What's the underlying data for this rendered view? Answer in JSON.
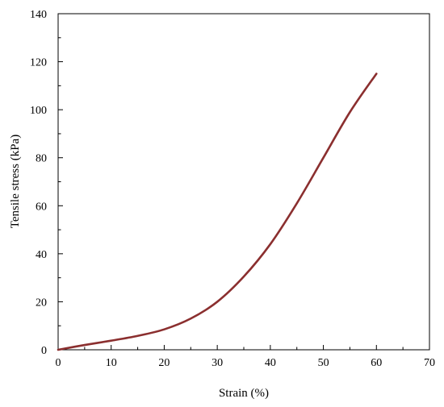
{
  "chart_data": {
    "type": "line",
    "xlabel": "Strain (%)",
    "ylabel": "Tensile stress (kPa)",
    "xlim": [
      0,
      70
    ],
    "ylim": [
      0,
      140
    ],
    "x_ticks": [
      0,
      10,
      20,
      30,
      40,
      50,
      60,
      70
    ],
    "y_ticks": [
      0,
      20,
      40,
      60,
      80,
      100,
      120,
      140
    ],
    "x_tick_labels": [
      "0",
      "10",
      "20",
      "30",
      "40",
      "50",
      "60",
      "70"
    ],
    "y_tick_labels": [
      "0",
      "20",
      "40",
      "60",
      "80",
      "100",
      "120",
      "140"
    ],
    "minor_ticks": true,
    "grid": false,
    "legend": "none",
    "series": [
      {
        "color": "#8b2f2f",
        "x": [
          0,
          5,
          10,
          15,
          20,
          25,
          30,
          35,
          40,
          45,
          50,
          55,
          60
        ],
        "y": [
          0,
          2,
          3.8,
          5.8,
          8.5,
          13,
          20,
          30.5,
          44,
          61,
          80,
          99,
          115
        ]
      }
    ]
  }
}
